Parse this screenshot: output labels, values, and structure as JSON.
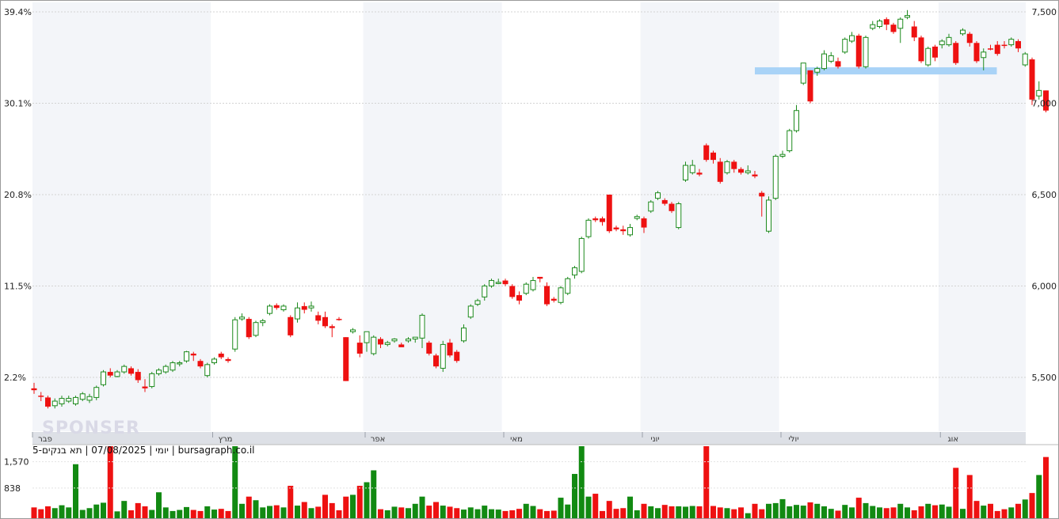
{
  "chart_data": {
    "type": "candlestick",
    "symbol": "תא בנקים-5",
    "date": "07/08/2025",
    "period": "יומי",
    "source": "bursagraph.co.il",
    "watermark": "SPONSER",
    "price_axis": {
      "ticks": [
        5500,
        6000,
        6500,
        7000,
        7500
      ],
      "tick_labels": [
        "5,500",
        "6,000",
        "6,500",
        "7,000",
        "7,500"
      ],
      "range": [
        5330,
        7550
      ]
    },
    "percent_axis": {
      "tick_labels": [
        "2.2%",
        "11.5%",
        "20.8%",
        "30.1%",
        "39.4%"
      ]
    },
    "volume_axis": {
      "tick_labels": [
        "1,570",
        "838"
      ],
      "ticks": [
        1570,
        838
      ],
      "max": 2000
    },
    "months": [
      {
        "label": "פבר",
        "start": 0
      },
      {
        "label": "מרץ",
        "start": 26
      },
      {
        "label": "אפר",
        "start": 48
      },
      {
        "label": "מאי",
        "start": 68
      },
      {
        "label": "יוני",
        "start": 88
      },
      {
        "label": "יולי",
        "start": 108
      },
      {
        "label": "אוג",
        "start": 131
      }
    ],
    "resistance_level": 7175,
    "candles": [
      [
        5440,
        5430,
        5470,
        5410,
        "d",
        300
      ],
      [
        5400,
        5395,
        5420,
        5370,
        "d",
        250
      ],
      [
        5390,
        5340,
        5400,
        5330,
        "d",
        330
      ],
      [
        5345,
        5370,
        5385,
        5330,
        "u",
        280
      ],
      [
        5355,
        5385,
        5400,
        5340,
        "u",
        360
      ],
      [
        5370,
        5385,
        5400,
        5360,
        "u",
        300
      ],
      [
        5355,
        5390,
        5400,
        5345,
        "u",
        1500
      ],
      [
        5380,
        5410,
        5420,
        5370,
        "u",
        230
      ],
      [
        5395,
        5375,
        5410,
        5360,
        "u",
        280
      ],
      [
        5390,
        5445,
        5455,
        5375,
        "u",
        380
      ],
      [
        5460,
        5530,
        5540,
        5450,
        "u",
        430
      ],
      [
        5530,
        5510,
        5550,
        5500,
        "d",
        2000
      ],
      [
        5505,
        5530,
        5540,
        5500,
        "u",
        190
      ],
      [
        5530,
        5560,
        5570,
        5520,
        "u",
        480
      ],
      [
        5550,
        5520,
        5560,
        5510,
        "d",
        220
      ],
      [
        5530,
        5485,
        5545,
        5470,
        "d",
        420
      ],
      [
        5450,
        5440,
        5490,
        5420,
        "d",
        330
      ],
      [
        5450,
        5520,
        5530,
        5440,
        "u",
        230
      ],
      [
        5520,
        5540,
        5550,
        5510,
        "u",
        720
      ],
      [
        5530,
        5560,
        5570,
        5520,
        "u",
        300
      ],
      [
        5540,
        5580,
        5590,
        5530,
        "u",
        200
      ],
      [
        5580,
        5575,
        5590,
        5560,
        "u",
        230
      ],
      [
        5590,
        5640,
        5645,
        5580,
        "u",
        310
      ],
      [
        5630,
        5620,
        5640,
        5590,
        "d",
        230
      ],
      [
        5590,
        5560,
        5600,
        5550,
        "d",
        200
      ],
      [
        5510,
        5570,
        5580,
        5500,
        "u",
        330
      ],
      [
        5580,
        5600,
        5610,
        5570,
        "u",
        240
      ],
      [
        5630,
        5610,
        5640,
        5600,
        "d",
        260
      ],
      [
        5600,
        5590,
        5610,
        5580,
        "d",
        200
      ],
      [
        5655,
        5815,
        5830,
        5640,
        "u",
        2000
      ],
      [
        5830,
        5820,
        5850,
        5810,
        "u",
        400
      ],
      [
        5820,
        5720,
        5830,
        5710,
        "d",
        600
      ],
      [
        5730,
        5800,
        5810,
        5720,
        "u",
        500
      ],
      [
        5800,
        5810,
        5820,
        5780,
        "u",
        300
      ],
      [
        5850,
        5890,
        5900,
        5840,
        "u",
        340
      ],
      [
        5895,
        5880,
        5905,
        5870,
        "d",
        360
      ],
      [
        5870,
        5890,
        5900,
        5860,
        "u",
        300
      ],
      [
        5830,
        5730,
        5840,
        5720,
        "d",
        900
      ],
      [
        5820,
        5880,
        5910,
        5800,
        "u",
        350
      ],
      [
        5890,
        5870,
        5910,
        5850,
        "d",
        450
      ],
      [
        5880,
        5890,
        5915,
        5860,
        "u",
        280
      ],
      [
        5840,
        5810,
        5860,
        5790,
        "d",
        320
      ],
      [
        5830,
        5780,
        5860,
        5770,
        "d",
        650
      ],
      [
        5780,
        5770,
        5790,
        5720,
        "d",
        420
      ],
      [
        5820,
        5820,
        5830,
        5810,
        "d",
        220
      ],
      [
        5720,
        5480,
        5720,
        5480,
        "d",
        600
      ],
      [
        5750,
        5760,
        5770,
        5740,
        "u",
        650
      ],
      [
        5690,
        5630,
        5730,
        5610,
        "d",
        900
      ],
      [
        5690,
        5750,
        5750,
        5640,
        "u",
        1000
      ],
      [
        5630,
        5720,
        5730,
        5620,
        "u",
        1330
      ],
      [
        5710,
        5680,
        5720,
        5660,
        "d",
        250
      ],
      [
        5680,
        5690,
        5700,
        5670,
        "u",
        220
      ],
      [
        5700,
        5710,
        5715,
        5690,
        "u",
        320
      ],
      [
        5665,
        5680,
        5690,
        5670,
        "d",
        300
      ],
      [
        5700,
        5710,
        5720,
        5690,
        "u",
        280
      ],
      [
        5720,
        5710,
        5720,
        5690,
        "u",
        400
      ],
      [
        5715,
        5840,
        5850,
        5660,
        "u",
        600
      ],
      [
        5690,
        5630,
        5700,
        5620,
        "d",
        350
      ],
      [
        5620,
        5560,
        5630,
        5550,
        "d",
        450
      ],
      [
        5550,
        5680,
        5700,
        5530,
        "u",
        350
      ],
      [
        5690,
        5620,
        5710,
        5610,
        "d",
        320
      ],
      [
        5640,
        5590,
        5650,
        5580,
        "d",
        280
      ],
      [
        5700,
        5770,
        5790,
        5690,
        "u",
        240
      ],
      [
        5830,
        5890,
        5900,
        5820,
        "u",
        300
      ],
      [
        5900,
        5920,
        5930,
        5890,
        "u",
        250
      ],
      [
        5940,
        6000,
        6010,
        5920,
        "u",
        350
      ],
      [
        6000,
        6030,
        6040,
        5990,
        "u",
        250
      ],
      [
        6020,
        6020,
        6040,
        6010,
        "u",
        240
      ],
      [
        6030,
        6010,
        6040,
        6000,
        "d",
        200
      ],
      [
        6000,
        5940,
        6010,
        5930,
        "d",
        220
      ],
      [
        5950,
        5920,
        5970,
        5900,
        "d",
        260
      ],
      [
        5960,
        6010,
        6020,
        5950,
        "u",
        400
      ],
      [
        5980,
        6030,
        6050,
        5970,
        "u",
        340
      ],
      [
        6050,
        6040,
        6050,
        6020,
        "d",
        250
      ],
      [
        6000,
        5900,
        6020,
        5890,
        "d",
        200
      ],
      [
        5930,
        5920,
        5940,
        5910,
        "d",
        210
      ],
      [
        5910,
        5990,
        6000,
        5900,
        "u",
        570
      ],
      [
        5960,
        6040,
        6050,
        5950,
        "u",
        380
      ],
      [
        6060,
        6100,
        6110,
        6040,
        "u",
        1230
      ],
      [
        6080,
        6260,
        6270,
        6070,
        "u",
        2000
      ],
      [
        6270,
        6360,
        6370,
        6260,
        "u",
        600
      ],
      [
        6370,
        6360,
        6380,
        6350,
        "d",
        680
      ],
      [
        6370,
        6350,
        6380,
        6330,
        "d",
        200
      ],
      [
        6300,
        6500,
        6500,
        6290,
        "d",
        480
      ],
      [
        6310,
        6320,
        6330,
        6300,
        "d",
        260
      ],
      [
        6310,
        6300,
        6330,
        6280,
        "d",
        280
      ],
      [
        6280,
        6320,
        6340,
        6270,
        "u",
        600
      ],
      [
        6370,
        6380,
        6390,
        6360,
        "u",
        220
      ],
      [
        6370,
        6320,
        6380,
        6290,
        "d",
        400
      ],
      [
        6410,
        6460,
        6470,
        6400,
        "u",
        330
      ],
      [
        6480,
        6510,
        6520,
        6470,
        "u",
        280
      ],
      [
        6470,
        6450,
        6480,
        6440,
        "d",
        370
      ],
      [
        6450,
        6410,
        6460,
        6400,
        "d",
        330
      ],
      [
        6320,
        6450,
        6460,
        6310,
        "u",
        330
      ],
      [
        6580,
        6660,
        6680,
        6570,
        "u",
        320
      ],
      [
        6660,
        6620,
        6690,
        6610,
        "u",
        340
      ],
      [
        6610,
        6620,
        6640,
        6600,
        "d",
        330
      ],
      [
        6690,
        6770,
        6780,
        6680,
        "d",
        2000
      ],
      [
        6730,
        6690,
        6740,
        6670,
        "d",
        340
      ],
      [
        6680,
        6570,
        6700,
        6560,
        "d",
        300
      ],
      [
        6620,
        6680,
        6690,
        6610,
        "u",
        280
      ],
      [
        6680,
        6640,
        6690,
        6620,
        "d",
        250
      ],
      [
        6640,
        6620,
        6650,
        6610,
        "d",
        300
      ],
      [
        6620,
        6630,
        6660,
        6610,
        "u",
        140
      ],
      [
        6600,
        6610,
        6630,
        6590,
        "d",
        400
      ],
      [
        6510,
        6490,
        6520,
        6380,
        "d",
        250
      ],
      [
        6300,
        6470,
        6490,
        6290,
        "u",
        400
      ],
      [
        6480,
        6710,
        6720,
        6470,
        "u",
        420
      ],
      [
        6710,
        6720,
        6740,
        6700,
        "u",
        530
      ],
      [
        6740,
        6850,
        6860,
        6730,
        "u",
        330
      ],
      [
        6850,
        6960,
        6990,
        6840,
        "u",
        370
      ],
      [
        7110,
        7220,
        7220,
        7100,
        "u",
        350
      ],
      [
        7010,
        7180,
        7180,
        7000,
        "d",
        440
      ],
      [
        7170,
        7190,
        7200,
        7150,
        "u",
        400
      ],
      [
        7190,
        7270,
        7290,
        7180,
        "u",
        330
      ],
      [
        7260,
        7230,
        7280,
        7220,
        "u",
        260
      ],
      [
        7230,
        7200,
        7250,
        7190,
        "d",
        210
      ],
      [
        7280,
        7350,
        7360,
        7270,
        "u",
        370
      ],
      [
        7370,
        7340,
        7390,
        7330,
        "u",
        300
      ],
      [
        7370,
        7200,
        7380,
        7190,
        "d",
        570
      ],
      [
        7200,
        7360,
        7370,
        7190,
        "u",
        420
      ],
      [
        7410,
        7430,
        7450,
        7400,
        "u",
        340
      ],
      [
        7420,
        7450,
        7460,
        7410,
        "u",
        300
      ],
      [
        7460,
        7430,
        7470,
        7400,
        "d",
        280
      ],
      [
        7430,
        7390,
        7440,
        7380,
        "d",
        300
      ],
      [
        7410,
        7460,
        7470,
        7330,
        "u",
        400
      ],
      [
        7470,
        7480,
        7510,
        7460,
        "u",
        300
      ],
      [
        7420,
        7360,
        7450,
        7340,
        "d",
        220
      ],
      [
        7360,
        7230,
        7370,
        7220,
        "d",
        330
      ],
      [
        7210,
        7300,
        7310,
        7200,
        "u",
        400
      ],
      [
        7310,
        7250,
        7320,
        7230,
        "d",
        360
      ],
      [
        7320,
        7340,
        7350,
        7300,
        "u",
        380
      ],
      [
        7360,
        7320,
        7380,
        7310,
        "u",
        320
      ],
      [
        7330,
        7220,
        7340,
        7210,
        "d",
        1400
      ],
      [
        7380,
        7400,
        7410,
        7370,
        "u",
        260
      ],
      [
        7380,
        7330,
        7390,
        7310,
        "d",
        1200
      ],
      [
        7330,
        7230,
        7340,
        7220,
        "d",
        480
      ],
      [
        7250,
        7280,
        7300,
        7180,
        "u",
        350
      ],
      [
        7300,
        7300,
        7320,
        7290,
        "d",
        400
      ],
      [
        7320,
        7270,
        7340,
        7260,
        "d",
        200
      ],
      [
        7320,
        7320,
        7340,
        7300,
        "d",
        250
      ],
      [
        7320,
        7350,
        7360,
        7310,
        "u",
        300
      ],
      [
        7340,
        7300,
        7350,
        7280,
        "d",
        400
      ],
      [
        7270,
        7210,
        7280,
        7200,
        "u",
        520
      ],
      [
        7240,
        7020,
        7250,
        6990,
        "d",
        700
      ],
      [
        7070,
        7040,
        7120,
        7020,
        "u",
        1200
      ],
      [
        7070,
        6960,
        7070,
        6950,
        "d",
        1700
      ]
    ]
  }
}
